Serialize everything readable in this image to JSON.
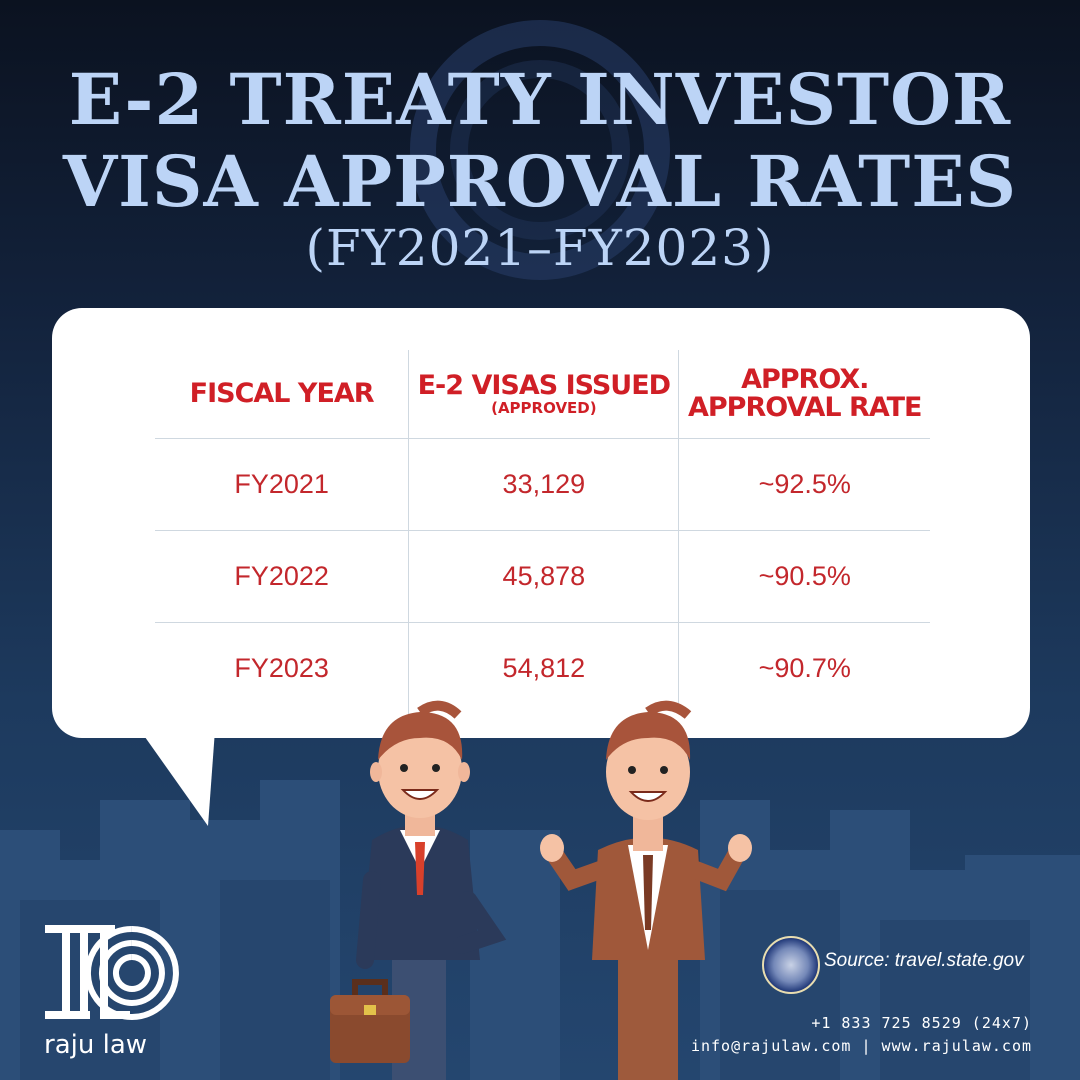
{
  "title": {
    "line1": "E-2 TREATY INVESTOR",
    "line2": "VISA APPROVAL RATES",
    "line3": "(FY2021–FY2023)"
  },
  "table": {
    "headers": [
      {
        "main": "FISCAL YEAR",
        "sub": ""
      },
      {
        "main": "E-2 VISAS ISSUED",
        "sub": "(APPROVED)"
      },
      {
        "main": "APPROX. APPROVAL RATE",
        "sub": ""
      }
    ],
    "rows": [
      [
        "FY2021",
        "33,129",
        "~92.5%"
      ],
      [
        "FY2022",
        "45,878",
        "~90.5%"
      ],
      [
        "FY2023",
        "54,812",
        "~90.7%"
      ]
    ]
  },
  "brand": {
    "name": "raju law"
  },
  "footer": {
    "source": "Source: travel.state.gov",
    "phone": "+1 833 725 8529 (24x7)",
    "web": "info@rajulaw.com | www.rajulaw.com"
  },
  "icons": [
    "briefcase-icon",
    "seal-icon",
    "logo-icon"
  ],
  "colors": {
    "title": "#bcd4f6",
    "header_red": "#d01f26",
    "cell_red": "#c3272c",
    "background": "#13233d"
  }
}
